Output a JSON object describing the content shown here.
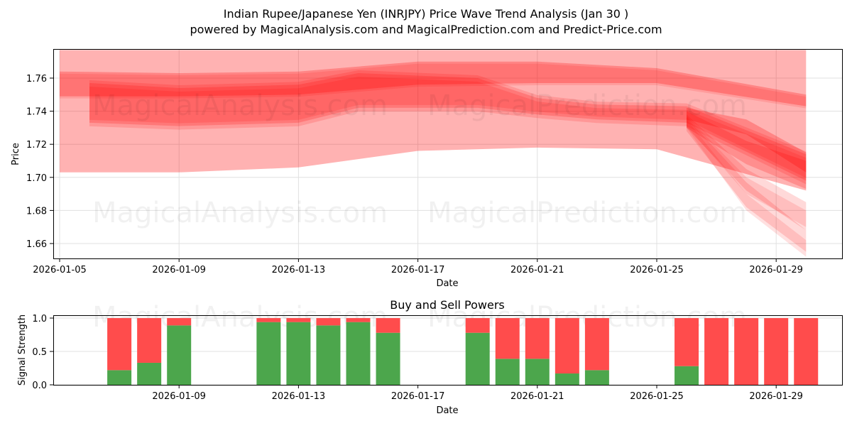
{
  "header": {
    "title": "Indian Rupee/Japanese Yen (INRJPY) Price Wave Trend Analysis (Jan 30 )",
    "subtitle": "powered by MagicalAnalysis.com and MagicalPrediction.com and Predict-Price.com"
  },
  "watermarks": [
    "MagicalAnalysis.com",
    "MagicalPrediction.com"
  ],
  "colors": {
    "band": "#ff0000",
    "buy": "#4ca64c",
    "sell": "#ff4c4c",
    "grid": "#e0e0e0"
  },
  "chart_data": [
    {
      "type": "area",
      "title": "",
      "xlabel": "Date",
      "ylabel": "Price",
      "ylim": [
        1.652,
        1.776
      ],
      "xlim": [
        "2026-01-05",
        "2026-01-31"
      ],
      "grid": true,
      "x_ticks": [
        "2026-01-05",
        "2026-01-09",
        "2026-01-13",
        "2026-01-17",
        "2026-01-21",
        "2026-01-25",
        "2026-01-29"
      ],
      "y_ticks": [
        "1.66",
        "1.68",
        "1.70",
        "1.72",
        "1.74",
        "1.76"
      ],
      "series": [
        {
          "name": "wide-band",
          "x": [
            "2026-01-05",
            "2026-01-09",
            "2026-01-13",
            "2026-01-17",
            "2026-01-21",
            "2026-01-25",
            "2026-01-30"
          ],
          "upper": [
            1.777,
            1.777,
            1.777,
            1.777,
            1.777,
            1.777,
            1.777
          ],
          "lower": [
            1.703,
            1.703,
            1.706,
            1.716,
            1.718,
            1.717,
            1.692
          ]
        },
        {
          "name": "upper-band",
          "x": [
            "2026-01-05",
            "2026-01-09",
            "2026-01-13",
            "2026-01-17",
            "2026-01-21",
            "2026-01-25",
            "2026-01-30"
          ],
          "upper": [
            1.764,
            1.763,
            1.764,
            1.77,
            1.77,
            1.766,
            1.75
          ],
          "lower": [
            1.749,
            1.749,
            1.75,
            1.756,
            1.757,
            1.757,
            1.743
          ]
        },
        {
          "name": "core-band",
          "x": [
            "2026-01-06",
            "2026-01-09",
            "2026-01-13",
            "2026-01-15",
            "2026-01-19",
            "2026-01-21",
            "2026-01-23",
            "2026-01-26",
            "2026-01-30"
          ],
          "upper": [
            1.757,
            1.754,
            1.756,
            1.763,
            1.76,
            1.748,
            1.744,
            1.743,
            1.714
          ],
          "lower": [
            1.733,
            1.731,
            1.733,
            1.742,
            1.742,
            1.738,
            1.735,
            1.733,
            1.698
          ]
        },
        {
          "name": "forecast-paths",
          "x": [
            "2026-01-26",
            "2026-01-28",
            "2026-01-30"
          ],
          "upper": [
            1.74,
            1.7,
            1.667
          ],
          "lower": [
            1.735,
            1.69,
            1.655
          ]
        }
      ]
    },
    {
      "type": "bar",
      "title": "Buy and Sell Powers",
      "xlabel": "Date",
      "ylabel": "Signal Strength",
      "ylim": [
        0,
        1.05
      ],
      "grid": true,
      "x_ticks": [
        "2026-01-09",
        "2026-01-13",
        "2026-01-17",
        "2026-01-21",
        "2026-01-25",
        "2026-01-29"
      ],
      "y_ticks": [
        "0.0",
        "0.5",
        "1.0"
      ],
      "categories": [
        "2026-01-07",
        "2026-01-08",
        "2026-01-09",
        "2026-01-12",
        "2026-01-13",
        "2026-01-14",
        "2026-01-15",
        "2026-01-16",
        "2026-01-19",
        "2026-01-20",
        "2026-01-21",
        "2026-01-22",
        "2026-01-23",
        "2026-01-26",
        "2026-01-27",
        "2026-01-28",
        "2026-01-29",
        "2026-01-30"
      ],
      "series": [
        {
          "name": "Buy",
          "values": [
            0.22,
            0.33,
            0.89,
            0.94,
            0.94,
            0.89,
            0.94,
            0.78,
            0.78,
            0.39,
            0.39,
            0.17,
            0.22,
            0.28,
            0.0,
            0.0,
            0.0,
            0.0
          ]
        },
        {
          "name": "Sell",
          "values": [
            0.78,
            0.67,
            0.11,
            0.06,
            0.06,
            0.11,
            0.06,
            0.22,
            0.22,
            0.61,
            0.61,
            0.83,
            0.78,
            0.72,
            1.0,
            1.0,
            1.0,
            1.0
          ]
        }
      ]
    }
  ]
}
